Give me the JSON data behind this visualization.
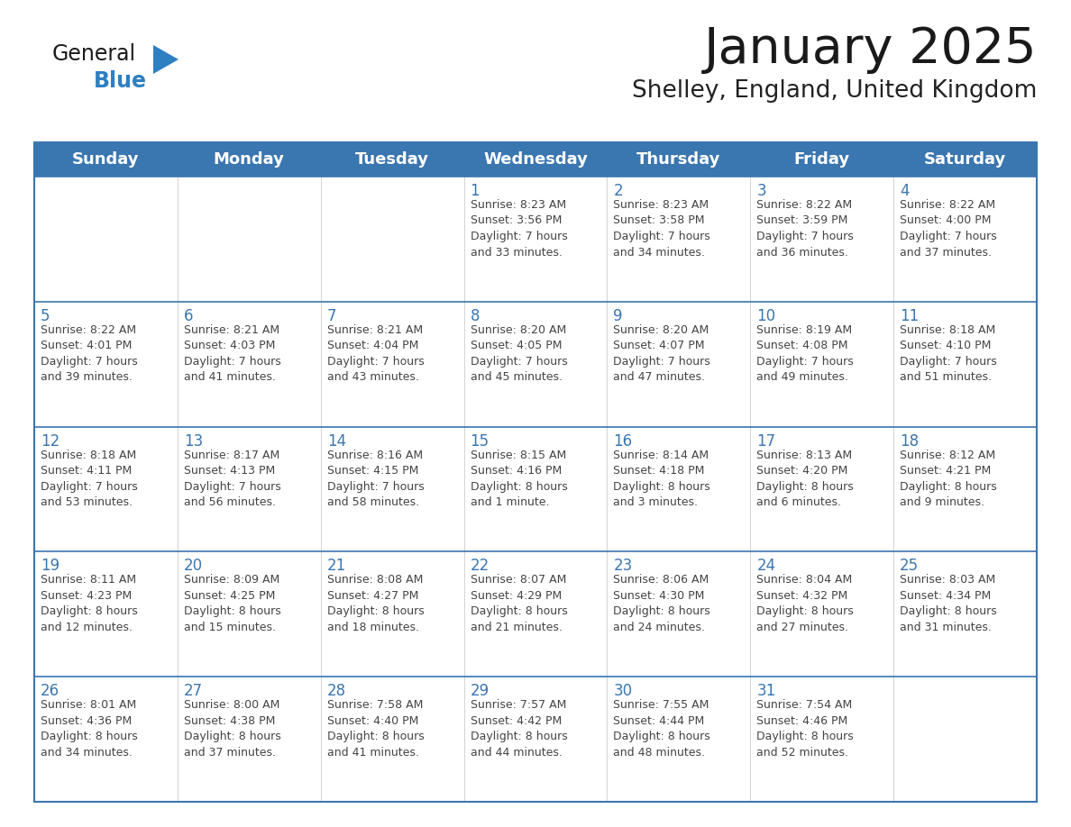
{
  "title": "January 2025",
  "subtitle": "Shelley, England, United Kingdom",
  "header_bg": "#3a76b0",
  "header_text_color": "#ffffff",
  "cell_bg": "#ffffff",
  "row_divider_color": "#3a76b0",
  "col_divider_color": "#cccccc",
  "outer_border_color": "#3a76b0",
  "day_headers": [
    "Sunday",
    "Monday",
    "Tuesday",
    "Wednesday",
    "Thursday",
    "Friday",
    "Saturday"
  ],
  "title_color": "#1a1a1a",
  "subtitle_color": "#222222",
  "day_number_color": "#3a76b0",
  "cell_text_color": "#444444",
  "logo_general_color": "#1a1a1a",
  "logo_blue_color": "#2e7fc1",
  "logo_triangle_color": "#2e7fc1",
  "calendar": [
    [
      {
        "day": null,
        "text": ""
      },
      {
        "day": null,
        "text": ""
      },
      {
        "day": null,
        "text": ""
      },
      {
        "day": 1,
        "text": "Sunrise: 8:23 AM\nSunset: 3:56 PM\nDaylight: 7 hours\nand 33 minutes."
      },
      {
        "day": 2,
        "text": "Sunrise: 8:23 AM\nSunset: 3:58 PM\nDaylight: 7 hours\nand 34 minutes."
      },
      {
        "day": 3,
        "text": "Sunrise: 8:22 AM\nSunset: 3:59 PM\nDaylight: 7 hours\nand 36 minutes."
      },
      {
        "day": 4,
        "text": "Sunrise: 8:22 AM\nSunset: 4:00 PM\nDaylight: 7 hours\nand 37 minutes."
      }
    ],
    [
      {
        "day": 5,
        "text": "Sunrise: 8:22 AM\nSunset: 4:01 PM\nDaylight: 7 hours\nand 39 minutes."
      },
      {
        "day": 6,
        "text": "Sunrise: 8:21 AM\nSunset: 4:03 PM\nDaylight: 7 hours\nand 41 minutes."
      },
      {
        "day": 7,
        "text": "Sunrise: 8:21 AM\nSunset: 4:04 PM\nDaylight: 7 hours\nand 43 minutes."
      },
      {
        "day": 8,
        "text": "Sunrise: 8:20 AM\nSunset: 4:05 PM\nDaylight: 7 hours\nand 45 minutes."
      },
      {
        "day": 9,
        "text": "Sunrise: 8:20 AM\nSunset: 4:07 PM\nDaylight: 7 hours\nand 47 minutes."
      },
      {
        "day": 10,
        "text": "Sunrise: 8:19 AM\nSunset: 4:08 PM\nDaylight: 7 hours\nand 49 minutes."
      },
      {
        "day": 11,
        "text": "Sunrise: 8:18 AM\nSunset: 4:10 PM\nDaylight: 7 hours\nand 51 minutes."
      }
    ],
    [
      {
        "day": 12,
        "text": "Sunrise: 8:18 AM\nSunset: 4:11 PM\nDaylight: 7 hours\nand 53 minutes."
      },
      {
        "day": 13,
        "text": "Sunrise: 8:17 AM\nSunset: 4:13 PM\nDaylight: 7 hours\nand 56 minutes."
      },
      {
        "day": 14,
        "text": "Sunrise: 8:16 AM\nSunset: 4:15 PM\nDaylight: 7 hours\nand 58 minutes."
      },
      {
        "day": 15,
        "text": "Sunrise: 8:15 AM\nSunset: 4:16 PM\nDaylight: 8 hours\nand 1 minute."
      },
      {
        "day": 16,
        "text": "Sunrise: 8:14 AM\nSunset: 4:18 PM\nDaylight: 8 hours\nand 3 minutes."
      },
      {
        "day": 17,
        "text": "Sunrise: 8:13 AM\nSunset: 4:20 PM\nDaylight: 8 hours\nand 6 minutes."
      },
      {
        "day": 18,
        "text": "Sunrise: 8:12 AM\nSunset: 4:21 PM\nDaylight: 8 hours\nand 9 minutes."
      }
    ],
    [
      {
        "day": 19,
        "text": "Sunrise: 8:11 AM\nSunset: 4:23 PM\nDaylight: 8 hours\nand 12 minutes."
      },
      {
        "day": 20,
        "text": "Sunrise: 8:09 AM\nSunset: 4:25 PM\nDaylight: 8 hours\nand 15 minutes."
      },
      {
        "day": 21,
        "text": "Sunrise: 8:08 AM\nSunset: 4:27 PM\nDaylight: 8 hours\nand 18 minutes."
      },
      {
        "day": 22,
        "text": "Sunrise: 8:07 AM\nSunset: 4:29 PM\nDaylight: 8 hours\nand 21 minutes."
      },
      {
        "day": 23,
        "text": "Sunrise: 8:06 AM\nSunset: 4:30 PM\nDaylight: 8 hours\nand 24 minutes."
      },
      {
        "day": 24,
        "text": "Sunrise: 8:04 AM\nSunset: 4:32 PM\nDaylight: 8 hours\nand 27 minutes."
      },
      {
        "day": 25,
        "text": "Sunrise: 8:03 AM\nSunset: 4:34 PM\nDaylight: 8 hours\nand 31 minutes."
      }
    ],
    [
      {
        "day": 26,
        "text": "Sunrise: 8:01 AM\nSunset: 4:36 PM\nDaylight: 8 hours\nand 34 minutes."
      },
      {
        "day": 27,
        "text": "Sunrise: 8:00 AM\nSunset: 4:38 PM\nDaylight: 8 hours\nand 37 minutes."
      },
      {
        "day": 28,
        "text": "Sunrise: 7:58 AM\nSunset: 4:40 PM\nDaylight: 8 hours\nand 41 minutes."
      },
      {
        "day": 29,
        "text": "Sunrise: 7:57 AM\nSunset: 4:42 PM\nDaylight: 8 hours\nand 44 minutes."
      },
      {
        "day": 30,
        "text": "Sunrise: 7:55 AM\nSunset: 4:44 PM\nDaylight: 8 hours\nand 48 minutes."
      },
      {
        "day": 31,
        "text": "Sunrise: 7:54 AM\nSunset: 4:46 PM\nDaylight: 8 hours\nand 52 minutes."
      },
      {
        "day": null,
        "text": ""
      }
    ]
  ]
}
